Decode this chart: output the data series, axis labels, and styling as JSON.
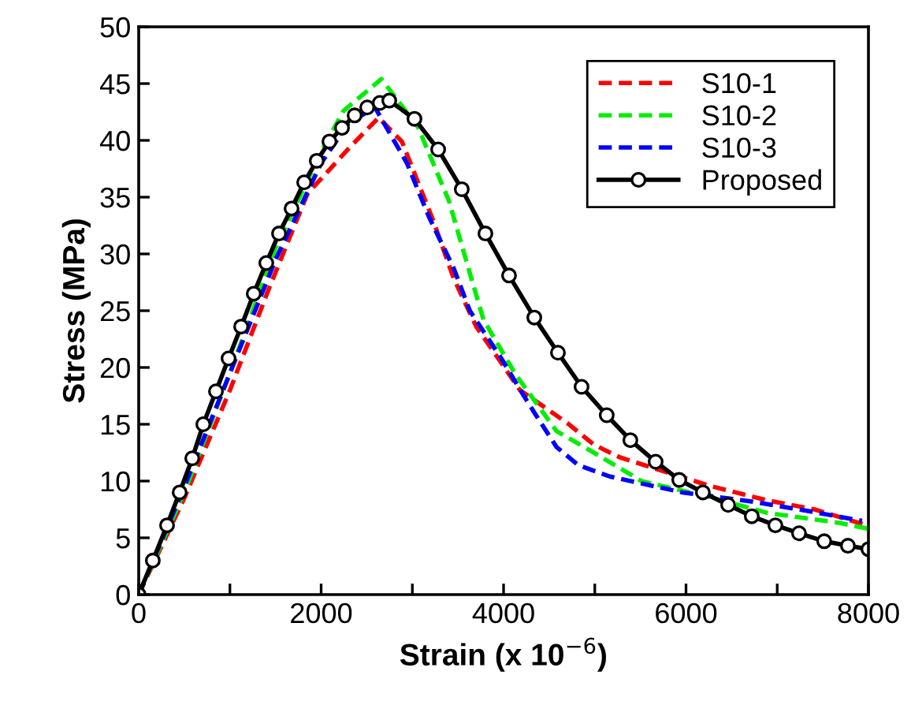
{
  "chart_data": {
    "type": "line",
    "xlabel": "Strain (x 10$^{−6}$)",
    "ylabel": "Stress (MPa)",
    "xlim": [
      0,
      8000
    ],
    "ylim": [
      0,
      50
    ],
    "xticks": [
      0,
      {
        "value": 1000,
        "label": null
      },
      2000,
      {
        "value": 3000,
        "label": null
      },
      4000,
      {
        "value": 5000,
        "label": null
      },
      6000,
      {
        "value": 7000,
        "label": null
      },
      8000
    ],
    "yticks": [
      0,
      5,
      10,
      15,
      20,
      25,
      30,
      35,
      40,
      45,
      50
    ],
    "grid": false,
    "legend": "top right",
    "series": [
      {
        "name": "S10-1",
        "color": "#ff0000",
        "line_style": "dashed",
        "marker": "none",
        "x": [
          0,
          500,
          1000,
          1430,
          1850,
          2315,
          2630,
          2885,
          3230,
          3455,
          3700,
          3975,
          4180,
          4700,
          4990,
          5270,
          6250,
          6890,
          7410,
          7980
        ],
        "values": [
          0,
          8.5,
          18,
          27,
          35.3,
          39.4,
          42,
          39.9,
          32.9,
          27.8,
          23.6,
          20.4,
          18,
          15.1,
          13.2,
          12.1,
          9.6,
          8.3,
          7.5,
          6.1
        ]
      },
      {
        "name": "S10-2",
        "color": "#00ee00",
        "line_style": "dashed",
        "marker": "none",
        "x": [
          0,
          500,
          1000,
          1500,
          2000,
          2245,
          2660,
          3060,
          3400,
          3630,
          3780,
          4130,
          4580,
          4990,
          5510,
          6250,
          6890,
          7690,
          8000
        ],
        "values": [
          0,
          9,
          19.5,
          30.5,
          39,
          42.6,
          45.4,
          41.2,
          34.7,
          28.3,
          24.2,
          19.4,
          14.4,
          12.5,
          10,
          8.6,
          7.2,
          6.3,
          5.8
        ]
      },
      {
        "name": "S10-3",
        "color": "#0000ff",
        "line_style": "dashed",
        "marker": "none",
        "x": [
          0,
          500,
          1000,
          1500,
          2000,
          2300,
          2590,
          2940,
          3180,
          3455,
          3630,
          3975,
          4215,
          4355,
          4580,
          4820,
          5165,
          5960,
          6720,
          7240,
          7930
        ],
        "values": [
          0,
          9.5,
          19.5,
          29.5,
          38,
          41.5,
          42.9,
          38,
          33.3,
          28.7,
          25,
          20.8,
          17.6,
          15.8,
          13,
          11.4,
          10.4,
          9,
          8.2,
          7.5,
          6.5
        ]
      },
      {
        "name": "Proposed",
        "color": "#000000",
        "line_style": "solid",
        "marker": "circle",
        "x": [
          0,
          155,
          311,
          449,
          587,
          708,
          847,
          985,
          1123,
          1261,
          1399,
          1538,
          1676,
          1814,
          1952,
          2091,
          2229,
          2367,
          2505,
          2643,
          2747,
          3023,
          3283,
          3542,
          3801,
          4060,
          4337,
          4596,
          4855,
          5131,
          5390,
          5667,
          5926,
          6185,
          6462,
          6721,
          6980,
          7239,
          7515,
          7775,
          8000
        ],
        "values": [
          0,
          3.0,
          6.1,
          9.0,
          12.0,
          15.0,
          17.9,
          20.8,
          23.6,
          26.5,
          29.2,
          31.8,
          34.0,
          36.3,
          38.2,
          39.9,
          41.1,
          42.2,
          42.9,
          43.3,
          43.5,
          41.9,
          39.2,
          35.7,
          31.8,
          28.1,
          24.4,
          21.3,
          18.3,
          15.8,
          13.6,
          11.7,
          10.1,
          9.0,
          7.9,
          6.9,
          6.1,
          5.4,
          4.7,
          4.3,
          4.0
        ]
      }
    ]
  }
}
